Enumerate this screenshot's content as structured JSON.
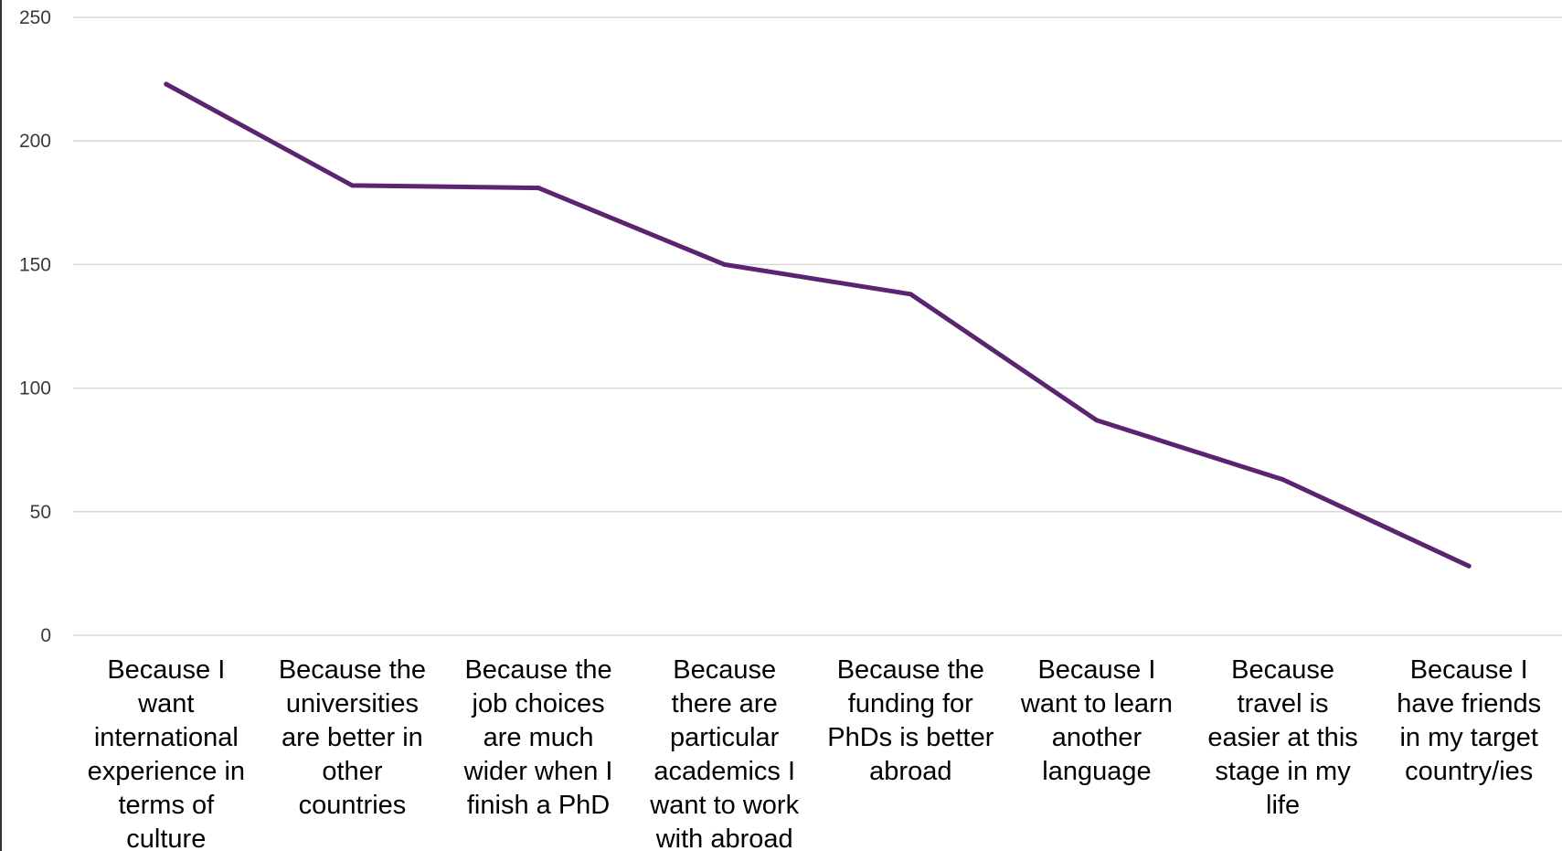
{
  "chart_data": {
    "type": "line",
    "categories": [
      "Because I want international experience in terms of culture",
      "Because the universities are better in other countries",
      "Because the job choices are much wider when I finish a PhD",
      "Because there are particular academics I want to work with abroad",
      "Because the funding for PhDs is better abroad",
      "Because I want to learn another language",
      "Because travel is easier at this stage in my life",
      "Because I have friends in my target country/ies"
    ],
    "category_lines": [
      [
        "Because I",
        "want",
        "international",
        "experience in",
        "terms of",
        "culture"
      ],
      [
        "Because the",
        "universities",
        "are better in",
        "other",
        "countries"
      ],
      [
        "Because the",
        "job choices",
        "are much",
        "wider when I",
        "finish a PhD"
      ],
      [
        "Because",
        "there are",
        "particular",
        "academics I",
        "want to work",
        "with abroad"
      ],
      [
        "Because the",
        "funding for",
        "PhDs is better",
        "abroad"
      ],
      [
        "Because I",
        "want to learn",
        "another",
        "language"
      ],
      [
        "Because",
        "travel is",
        "easier at this",
        "stage in my",
        "life"
      ],
      [
        "Because I",
        "have friends",
        "in my target",
        "country/ies"
      ]
    ],
    "series": [
      {
        "values": [
          223,
          182,
          181,
          150,
          138,
          87,
          63,
          28
        ],
        "color": "#5c2470"
      }
    ],
    "ylim": [
      0,
      250
    ],
    "yticks": [
      0,
      50,
      100,
      150,
      200,
      250
    ],
    "grid": true,
    "legend": "none",
    "title": "",
    "xlabel": "",
    "ylabel": ""
  },
  "colors": {
    "gridline": "#d9d9d9",
    "axis_left": "#333333",
    "tick_label": "#3a3a3a"
  }
}
